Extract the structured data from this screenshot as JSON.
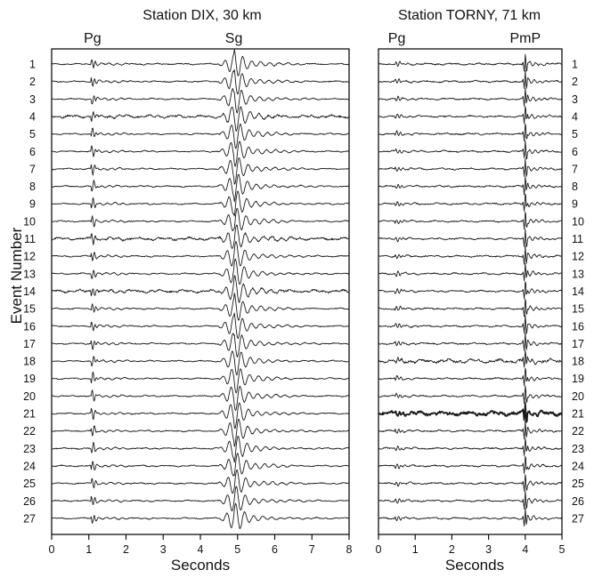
{
  "figure": {
    "y_axis_label": "Event Number",
    "x_axis_label": "Seconds"
  },
  "chart_data": [
    {
      "type": "line",
      "title": "Station DIX, 30 km",
      "xlabel": "Seconds",
      "ylabel": "Event Number",
      "xlim": [
        0,
        8
      ],
      "x_ticks": [
        "0",
        "1",
        "2",
        "3",
        "4",
        "5",
        "6",
        "7",
        "8"
      ],
      "event_numbers": [
        "1",
        "2",
        "3",
        "4",
        "5",
        "6",
        "7",
        "8",
        "9",
        "10",
        "11",
        "12",
        "13",
        "14",
        "15",
        "16",
        "17",
        "18",
        "19",
        "20",
        "21",
        "22",
        "23",
        "24",
        "25",
        "26",
        "27"
      ],
      "annotations": [
        {
          "label": "Pg",
          "x": 1.1
        },
        {
          "label": "Sg",
          "x": 4.9
        }
      ],
      "grid": false,
      "legend": "none"
    },
    {
      "type": "line",
      "title": "Station TORNY, 71 km",
      "xlabel": "Seconds",
      "ylabel": "",
      "xlim": [
        0,
        5
      ],
      "x_ticks": [
        "0",
        "1",
        "2",
        "3",
        "4",
        "5"
      ],
      "event_numbers": [
        "1",
        "2",
        "3",
        "4",
        "5",
        "6",
        "7",
        "8",
        "9",
        "10",
        "11",
        "12",
        "13",
        "14",
        "15",
        "16",
        "17",
        "18",
        "19",
        "20",
        "21",
        "22",
        "23",
        "24",
        "25",
        "26",
        "27"
      ],
      "annotations": [
        {
          "label": "Pg",
          "x": 0.5
        },
        {
          "label": "PmP",
          "x": 4.0
        }
      ],
      "grid": false,
      "legend": "none"
    }
  ]
}
